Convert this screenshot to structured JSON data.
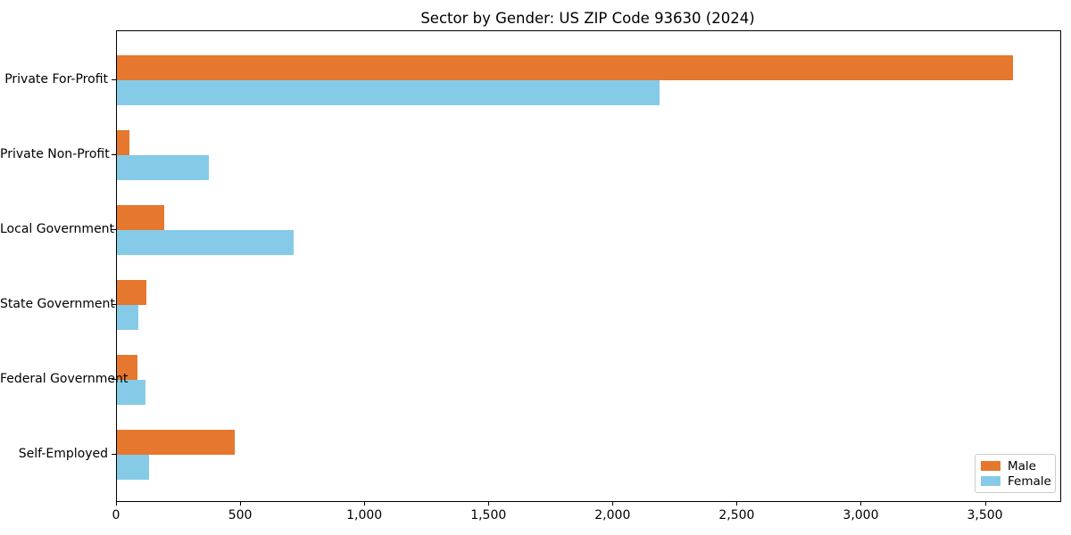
{
  "chart": {
    "title": "Sector by Gender: US ZIP Code 93630 (2024)"
  },
  "chart_data": {
    "type": "bar",
    "orientation": "horizontal",
    "title": "Sector by Gender: US ZIP Code 93630 (2024)",
    "xlabel": "",
    "ylabel": "",
    "categories": [
      "Private For-Profit",
      "Private Non-Profit",
      "Local Government",
      "State Government",
      "Federal Government",
      "Self-Employed"
    ],
    "series": [
      {
        "name": "Male",
        "color": "#e5772e",
        "values": [
          3610,
          52,
          191,
          120,
          81,
          476
        ]
      },
      {
        "name": "Female",
        "color": "#85cbe8",
        "values": [
          2185,
          372,
          713,
          86,
          114,
          131
        ]
      }
    ],
    "xlim": [
      0,
      3800
    ],
    "xticks": [
      0,
      500,
      1000,
      1500,
      2000,
      2500,
      3000,
      3500
    ],
    "xtick_labels": [
      "0",
      "500",
      "1,000",
      "1,500",
      "2,000",
      "2,500",
      "3,000",
      "3,500"
    ],
    "grid": false,
    "legend_position": "lower right",
    "colors": {
      "background": "#ffffff",
      "spine": "#000000",
      "text": "#000000",
      "legend_border": "#cccccc"
    }
  }
}
